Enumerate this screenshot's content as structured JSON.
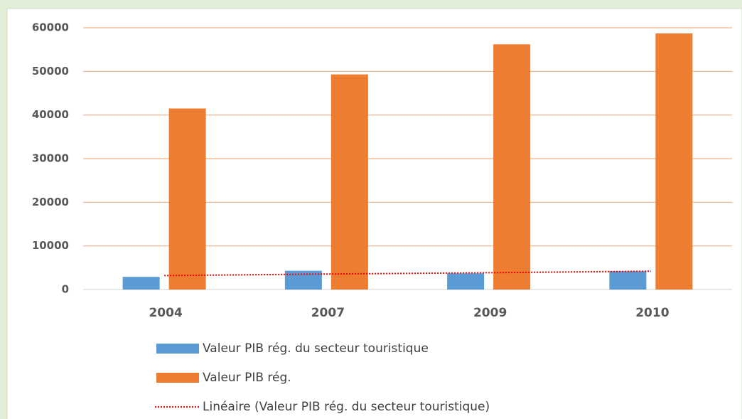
{
  "chart_data": {
    "type": "bar",
    "categories": [
      "2004",
      "2007",
      "2009",
      "2010"
    ],
    "series": [
      {
        "name": "Valeur PIB rég. du secteur touristique",
        "color": "#5b9bd5",
        "values": [
          2900,
          4300,
          3700,
          4200
        ]
      },
      {
        "name": "Valeur PIB rég.",
        "color": "#ed7d31",
        "values": [
          41500,
          49300,
          56200,
          58700
        ]
      },
      {
        "name": "Linéaire (Valeur PIB rég. du secteur touristique)",
        "type": "line",
        "dotted": true,
        "color": "#ff0000",
        "values": [
          3200,
          3550,
          3850,
          4200
        ]
      }
    ],
    "ylim": [
      0,
      60000
    ],
    "yticks": [
      0,
      10000,
      20000,
      30000,
      40000,
      50000,
      60000
    ],
    "grid": true,
    "grid_color": "#f4b183"
  }
}
